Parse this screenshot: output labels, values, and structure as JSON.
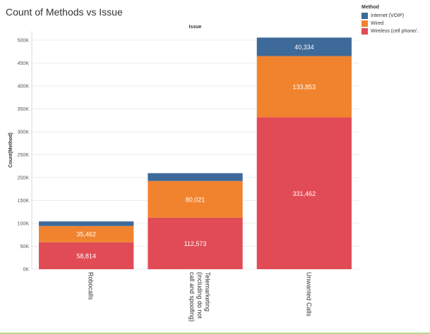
{
  "title": "Count of Methods vs Issue",
  "legend": {
    "title": "Method",
    "items": [
      {
        "label": "Internet (VOIP)",
        "color": "#3e6a9a"
      },
      {
        "label": "Wired",
        "color": "#f1832f"
      },
      {
        "label": "Wireless (cell phone/..",
        "color": "#e14b56"
      }
    ]
  },
  "chart_data": {
    "type": "bar",
    "stacked": true,
    "title": "Count of Methods vs Issue",
    "column_header": "Issue",
    "ylabel": "Count(Method)",
    "ylim": [
      0,
      520000
    ],
    "yticks": [
      0,
      50000,
      100000,
      150000,
      200000,
      250000,
      300000,
      350000,
      400000,
      450000,
      500000
    ],
    "ytick_labels": [
      "0K",
      "50K",
      "100K",
      "150K",
      "200K",
      "250K",
      "300K",
      "350K",
      "400K",
      "450K",
      "500K"
    ],
    "grid": true,
    "legend_position": "top-right",
    "categories": [
      [
        "Robocalls"
      ],
      [
        "Telemarketing",
        "(including do not",
        "call and spoofing)"
      ],
      [
        "Unwanted Calls"
      ]
    ],
    "series": [
      {
        "name": "Wireless (cell phone/..",
        "color": "#e14b56",
        "values": [
          58814,
          112573,
          331462
        ],
        "labels": [
          "58,814",
          "112,573",
          "331,462"
        ]
      },
      {
        "name": "Wired",
        "color": "#f1832f",
        "values": [
          35462,
          80021,
          133853
        ],
        "labels": [
          "35,462",
          "80,021",
          "133,853"
        ]
      },
      {
        "name": "Internet (VOIP)",
        "color": "#3e6a9a",
        "values": [
          10000,
          17000,
          40334
        ],
        "labels": [
          "",
          "",
          "40,334"
        ]
      }
    ]
  }
}
